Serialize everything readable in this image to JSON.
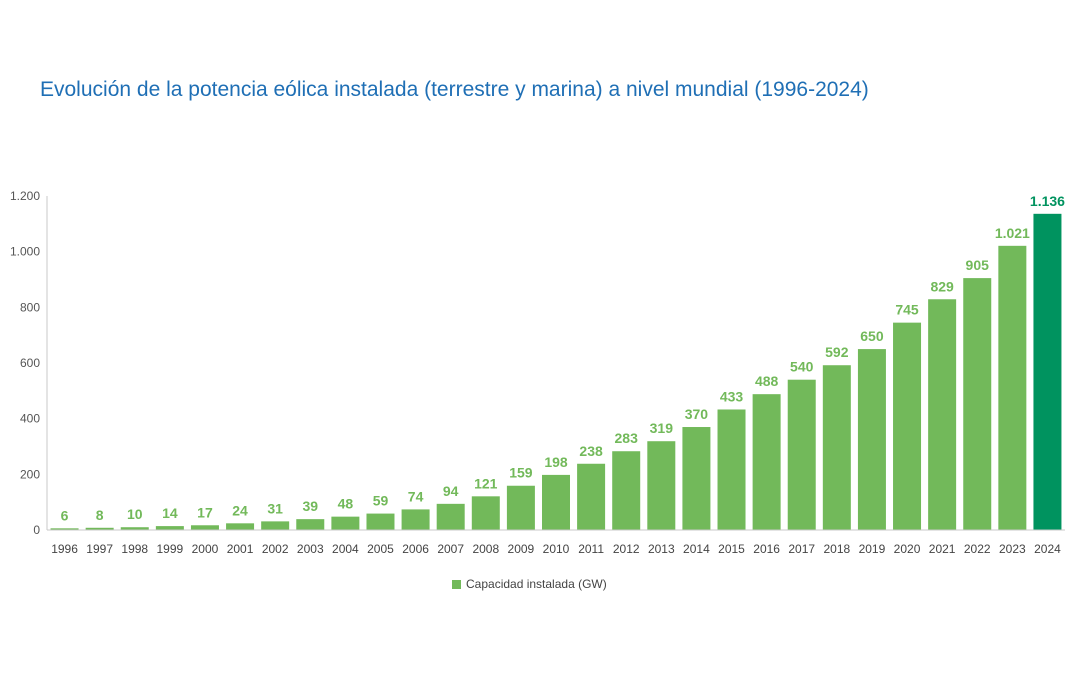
{
  "colors": {
    "bar": "#72b95a",
    "highlight": "#00935f",
    "title": "#1f6fb5",
    "axis": "#c8c8c8"
  },
  "chart_data": {
    "type": "bar",
    "title": "Evolución de la potencia eólica instalada (terrestre y marina) a nivel mundial (1996-2024)",
    "categories": [
      "1996",
      "1997",
      "1998",
      "1999",
      "2000",
      "2001",
      "2002",
      "2003",
      "2004",
      "2005",
      "2006",
      "2007",
      "2008",
      "2009",
      "2010",
      "2011",
      "2012",
      "2013",
      "2014",
      "2015",
      "2016",
      "2017",
      "2018",
      "2019",
      "2020",
      "2021",
      "2022",
      "2023",
      "2024"
    ],
    "series": [
      {
        "name": "Capacidad instalada (GW)",
        "values": [
          6,
          8,
          10,
          14,
          17,
          24,
          31,
          39,
          48,
          59,
          74,
          94,
          121,
          159,
          198,
          238,
          283,
          319,
          370,
          433,
          488,
          540,
          592,
          650,
          745,
          829,
          905,
          1021,
          1136
        ]
      }
    ],
    "value_labels": [
      "6",
      "8",
      "10",
      "14",
      "17",
      "24",
      "31",
      "39",
      "48",
      "59",
      "74",
      "94",
      "121",
      "159",
      "198",
      "238",
      "283",
      "319",
      "370",
      "433",
      "488",
      "540",
      "592",
      "650",
      "745",
      "829",
      "905",
      "1.021",
      "1.136"
    ],
    "highlight_category": "2024",
    "ylim": [
      0,
      1200
    ],
    "yticks": [
      0,
      200,
      400,
      600,
      800,
      1000,
      1200
    ],
    "ytick_labels": [
      "0",
      "200",
      "400",
      "600",
      "800",
      "1.000",
      "1.200"
    ],
    "grid": false,
    "legend": "bottom"
  }
}
